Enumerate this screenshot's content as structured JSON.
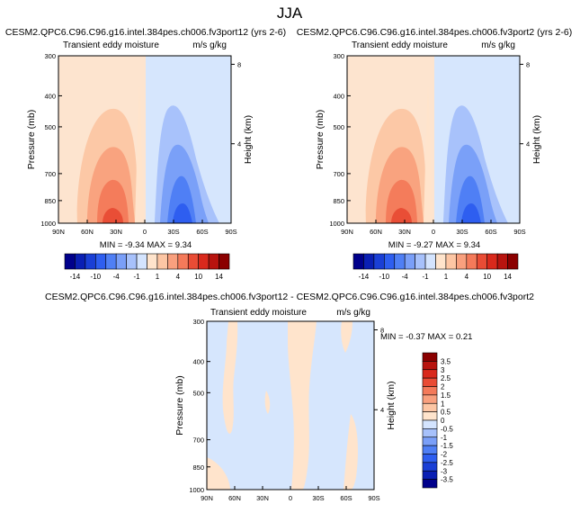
{
  "figure_title": "JJA",
  "panel_a": {
    "title": "CESM2.QPC6.C96.C96.g16.intel.384pes.ch006.fv3port12 (yrs 2-6)",
    "left_string": "Transient eddy moisture",
    "right_string": "m/s g/kg",
    "stats": "MIN = -9.34   MAX =  9.34"
  },
  "panel_b": {
    "title": "CESM2.QPC6.C96.C96.g16.intel.384pes.ch006.fv3port2 (yrs 2-6)",
    "left_string": "Transient eddy moisture",
    "right_string": "m/s g/kg",
    "stats": "MIN = -9.27   MAX =  9.34"
  },
  "panel_c": {
    "title": "CESM2.QPC6.C96.C96.g16.intel.384pes.ch006.fv3port12 - CESM2.QPC6.C96.C96.g16.intel.384pes.ch006.fv3port2",
    "left_string": "Transient eddy moisture",
    "right_string": "m/s g/kg",
    "stats": "MIN = -0.37   MAX =  0.21"
  },
  "axis": {
    "ylabel": "Pressure (mb)",
    "y2label": "Height (km)",
    "pressure_ticks": [
      "300",
      "400",
      "500",
      "700",
      "850",
      "1000"
    ],
    "height_ticks": [
      "8",
      "4"
    ],
    "lat_ticks": [
      "90N",
      "60N",
      "30N",
      "0",
      "30S",
      "60S",
      "90S"
    ]
  },
  "colorbar_top": {
    "colors": [
      "#00008b",
      "#0a1fb4",
      "#1a3fd6",
      "#2e5ef0",
      "#4f7ff5",
      "#7a9ff8",
      "#a7c1fb",
      "#d4e4fe",
      "#ffe4cc",
      "#fdc6a4",
      "#f9a07e",
      "#f47a5a",
      "#e94c35",
      "#d9291c",
      "#b8140f",
      "#8b0000"
    ],
    "labels": [
      "-14",
      "-10",
      "-4",
      "-1",
      "1",
      "4",
      "10",
      "14"
    ]
  },
  "colorbar_diff": {
    "colors": [
      "#8b0000",
      "#b8140f",
      "#d9291c",
      "#e94c35",
      "#f47a5a",
      "#f9a07e",
      "#fdc6a4",
      "#ffe4cc",
      "#d4e4fe",
      "#a7c1fb",
      "#7a9ff8",
      "#4f7ff5",
      "#2e5ef0",
      "#1a3fd6",
      "#0a1fb4",
      "#00008b"
    ],
    "labels": [
      "3.5",
      "3",
      "2.5",
      "2",
      "1.5",
      "1",
      "0.5",
      "0",
      "-0.5",
      "-1",
      "-1.5",
      "-2",
      "-2.5",
      "-3",
      "-3.5"
    ]
  },
  "chart_data": [
    {
      "type": "heatmap",
      "title": "CESM2.QPC6.C96.C96.g16.intel.384pes.ch006.fv3port12 (yrs 2-6)",
      "xlabel": "",
      "ylabel": "Pressure (mb)",
      "y2label": "Height (km)",
      "x": [
        "90N",
        "60N",
        "30N",
        "0",
        "30S",
        "60S",
        "90S"
      ],
      "y": [
        300,
        400,
        500,
        700,
        850,
        1000
      ],
      "zmin": -9.34,
      "zmax": 9.34,
      "units": "m/s g/kg",
      "pattern": "positive north of equator peaking ~30N near 900-1000 mb; negative south of equator peaking ~30S near 900-1000 mb"
    },
    {
      "type": "heatmap",
      "title": "CESM2.QPC6.C96.C96.g16.intel.384pes.ch006.fv3port2 (yrs 2-6)",
      "xlabel": "",
      "ylabel": "Pressure (mb)",
      "y2label": "Height (km)",
      "x": [
        "90N",
        "60N",
        "30N",
        "0",
        "30S",
        "60S",
        "90S"
      ],
      "y": [
        300,
        400,
        500,
        700,
        850,
        1000
      ],
      "zmin": -9.27,
      "zmax": 9.34,
      "units": "m/s g/kg"
    },
    {
      "type": "heatmap",
      "title": "CESM2.QPC6.C96.C96.g16.intel.384pes.ch006.fv3port12 - CESM2.QPC6.C96.C96.g16.intel.384pes.ch006.fv3port2",
      "xlabel": "",
      "ylabel": "Pressure (mb)",
      "y2label": "Height (km)",
      "x": [
        "90N",
        "60N",
        "30N",
        "0",
        "30S",
        "60S",
        "90S"
      ],
      "y": [
        300,
        400,
        500,
        700,
        850,
        1000
      ],
      "zmin": -0.37,
      "zmax": 0.21,
      "units": "m/s g/kg"
    }
  ]
}
